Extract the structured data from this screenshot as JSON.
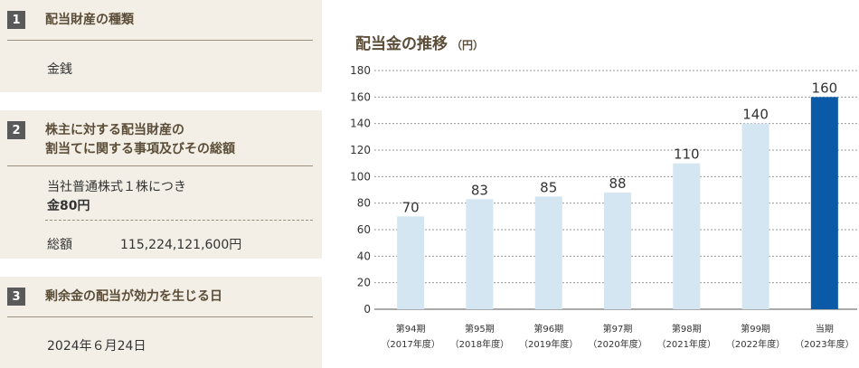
{
  "sections": [
    {
      "number": "1",
      "heading_line1": "配当財産の種類",
      "heading_line2": "",
      "body": "金銭"
    },
    {
      "number": "2",
      "heading_line1": "株主に対する配当財産の",
      "heading_line2": "割当てに関する事項及びその総額",
      "body_line1": "当社普通株式１株につき",
      "body_line2": "金80円",
      "total_label": "総額",
      "total_value": "115,224,121,600円"
    },
    {
      "number": "3",
      "heading_line1": "剰余金の配当が効力を生じる日",
      "heading_line2": "",
      "body": "2024年６月24日"
    }
  ],
  "chart_title": "配当金の推移",
  "chart_unit": "（円）",
  "colors": {
    "bar": "#d4e6f1",
    "bar_highlight": "#0b5aa7",
    "panel": "#f3efe6",
    "heading": "#5b4d38"
  },
  "chart_data": {
    "type": "bar",
    "title": "配当金の推移",
    "ylabel": "（円）",
    "ylim": [
      0,
      180
    ],
    "yticks": [
      "0",
      "20",
      "40",
      "60",
      "80",
      "100",
      "120",
      "140",
      "160",
      "180"
    ],
    "grid": true,
    "categories": [
      {
        "line1": "第94期",
        "line2": "（2017年度）"
      },
      {
        "line1": "第95期",
        "line2": "（2018年度）"
      },
      {
        "line1": "第96期",
        "line2": "（2019年度）"
      },
      {
        "line1": "第97期",
        "line2": "（2020年度）"
      },
      {
        "line1": "第98期",
        "line2": "（2021年度）"
      },
      {
        "line1": "第99期",
        "line2": "（2022年度）"
      },
      {
        "line1": "当期",
        "line2": "（2023年度）"
      }
    ],
    "values": [
      70,
      83,
      85,
      88,
      110,
      140,
      160
    ],
    "labels": [
      "70",
      "83",
      "85",
      "88",
      "110",
      "140",
      "160"
    ],
    "highlight_index": 6
  }
}
